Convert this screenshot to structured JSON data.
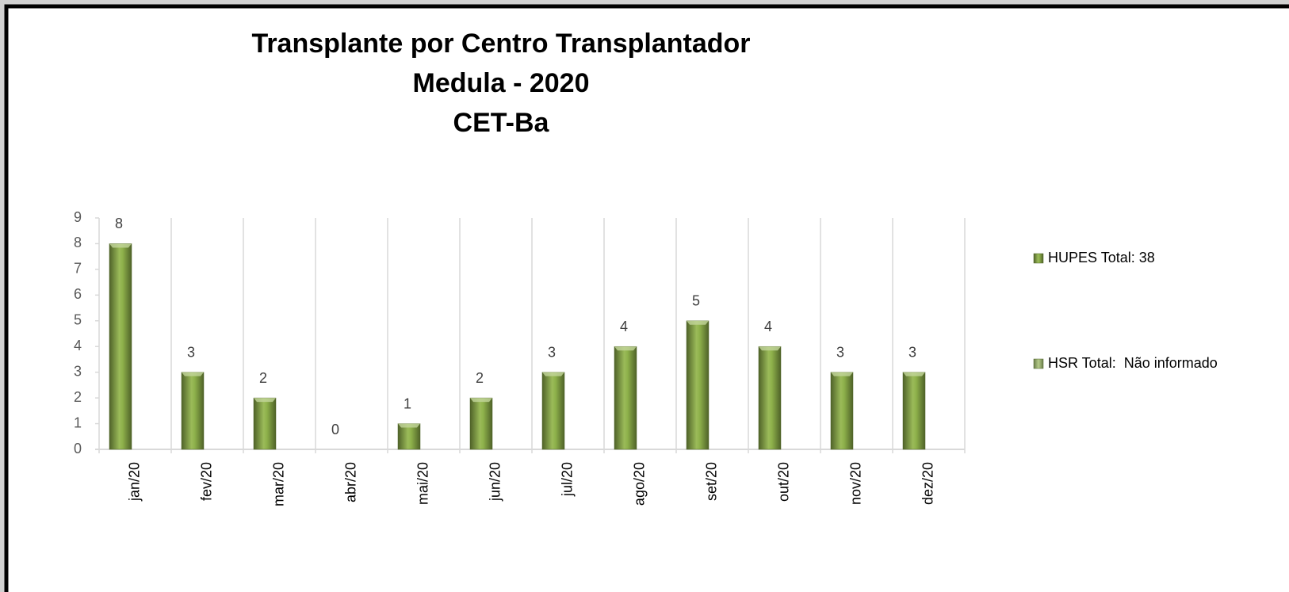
{
  "chart_data": {
    "type": "bar",
    "title": [
      "Transplante por Centro Transplantador",
      "Medula - 2020",
      "CET-Ba"
    ],
    "categories": [
      "jan/20",
      "fev/20",
      "mar/20",
      "abr/20",
      "mai/20",
      "jun/20",
      "jul/20",
      "ago/20",
      "set/20",
      "out/20",
      "nov/20",
      "dez/20"
    ],
    "series": [
      {
        "name": "HUPES Total: 38",
        "color": "#77933c",
        "values": [
          8,
          3,
          2,
          0,
          1,
          2,
          3,
          4,
          5,
          4,
          3,
          3
        ]
      },
      {
        "name": "HSR Total:  Não informado",
        "color": "#8fa865",
        "values": [
          null,
          null,
          null,
          null,
          null,
          null,
          null,
          null,
          null,
          null,
          null,
          null
        ]
      }
    ],
    "ylim": [
      0,
      9
    ],
    "yticks": [
      0,
      1,
      2,
      3,
      4,
      5,
      6,
      7,
      8,
      9
    ],
    "legend": "right",
    "data_labels": true
  }
}
